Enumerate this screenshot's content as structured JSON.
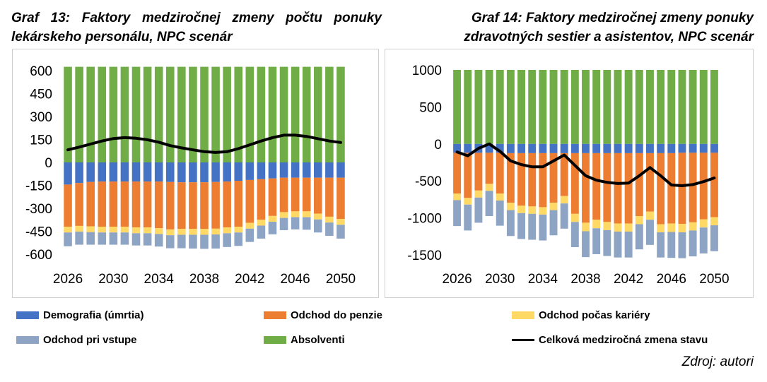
{
  "titles": {
    "left": "Graf 13: Faktory medziročnej zmeny počtu ponuky lekárskeho personálu, NPC scenár",
    "right": "Graf 14: Faktory medziročnej zmeny ponuky zdravotných sestier a asistentov, NPC scenár"
  },
  "legend": {
    "demografia": "Demografia (úmrtia)",
    "penzia": "Odchod do penzie",
    "kariera": "Odchod počas kariéry",
    "vstup": "Odchod pri vstupe",
    "absolventi": "Absolventi",
    "celkova": "Celková medziročná zmena stavu"
  },
  "source": "Zdroj: autori",
  "colors": {
    "demografia": "#4472C4",
    "penzia": "#ED7D31",
    "kariera": "#FFD966",
    "vstup": "#8EA4C4",
    "absolventi": "#70AD47",
    "celkova": "#000000"
  },
  "chart_data": [
    {
      "type": "bar",
      "stacked": true,
      "title": "Graf 13: Faktory medziročnej zmeny počtu ponuky lekárskeho personálu, NPC scenár",
      "x": [
        2026,
        2027,
        2028,
        2029,
        2030,
        2031,
        2032,
        2033,
        2034,
        2035,
        2036,
        2037,
        2038,
        2039,
        2040,
        2041,
        2042,
        2043,
        2044,
        2045,
        2046,
        2047,
        2048,
        2049,
        2050
      ],
      "x_ticks": [
        "2026",
        "2030",
        "2034",
        "2038",
        "2042",
        "2046",
        "2050"
      ],
      "ylim": [
        -600,
        600
      ],
      "y_ticks": [
        "600",
        "450",
        "300",
        "150",
        "0",
        "-150",
        "-300",
        "-450",
        "-600"
      ],
      "grid": false,
      "series": [
        {
          "name": "Absolventi",
          "key": "absolventi",
          "kind": "bar",
          "values": [
            625,
            625,
            625,
            625,
            625,
            625,
            625,
            625,
            625,
            625,
            625,
            625,
            625,
            625,
            625,
            625,
            625,
            625,
            625,
            625,
            625,
            625,
            625,
            625,
            625
          ]
        },
        {
          "name": "Demografia (úmrtia)",
          "key": "demografia",
          "kind": "bar",
          "values": [
            -145,
            -135,
            -128,
            -125,
            -125,
            -125,
            -125,
            -125,
            -125,
            -128,
            -130,
            -130,
            -130,
            -128,
            -125,
            -120,
            -115,
            -110,
            -105,
            -100,
            -100,
            -100,
            -100,
            -100,
            -100
          ]
        },
        {
          "name": "Odchod do penzie",
          "key": "penzia",
          "kind": "bar",
          "values": [
            -275,
            -280,
            -290,
            -295,
            -295,
            -295,
            -300,
            -300,
            -305,
            -310,
            -305,
            -305,
            -305,
            -305,
            -300,
            -300,
            -280,
            -265,
            -245,
            -225,
            -220,
            -220,
            -235,
            -255,
            -270
          ]
        },
        {
          "name": "Odchod počas kariéry",
          "key": "kariera",
          "kind": "bar",
          "values": [
            -38,
            -38,
            -38,
            -38,
            -38,
            -38,
            -38,
            -38,
            -38,
            -38,
            -38,
            -38,
            -38,
            -38,
            -38,
            -38,
            -38,
            -38,
            -38,
            -38,
            -38,
            -38,
            -38,
            -38,
            -38
          ]
        },
        {
          "name": "Odchod pri vstupe",
          "key": "vstup",
          "kind": "bar",
          "values": [
            -90,
            -85,
            -82,
            -80,
            -80,
            -80,
            -80,
            -80,
            -82,
            -85,
            -88,
            -90,
            -92,
            -92,
            -90,
            -88,
            -87,
            -85,
            -82,
            -80,
            -80,
            -82,
            -85,
            -87,
            -90
          ]
        },
        {
          "name": "Celková medziročná zmena stavu",
          "key": "celkova",
          "kind": "line",
          "values": [
            82,
            100,
            120,
            140,
            156,
            162,
            158,
            148,
            132,
            110,
            95,
            82,
            70,
            65,
            70,
            90,
            115,
            140,
            162,
            178,
            178,
            170,
            155,
            140,
            130
          ]
        }
      ]
    },
    {
      "type": "bar",
      "stacked": true,
      "title": "Graf 14: Faktory medziročnej zmeny ponuky zdravotných sestier a asistentov, NPC scenár",
      "x": [
        2026,
        2027,
        2028,
        2029,
        2030,
        2031,
        2032,
        2033,
        2034,
        2035,
        2036,
        2037,
        2038,
        2039,
        2040,
        2041,
        2042,
        2043,
        2044,
        2045,
        2046,
        2047,
        2048,
        2049,
        2050
      ],
      "x_ticks": [
        "2026",
        "2030",
        "2034",
        "2038",
        "2042",
        "2046",
        "2050"
      ],
      "ylim": [
        -1500,
        1000
      ],
      "y_ticks": [
        "1000",
        "500",
        "0",
        "-500",
        "-1000",
        "-1500"
      ],
      "grid": false,
      "series": [
        {
          "name": "Absolventi",
          "key": "absolventi",
          "kind": "bar",
          "values": [
            1000,
            1000,
            1000,
            1000,
            1000,
            1000,
            1000,
            1000,
            1000,
            1000,
            1000,
            1000,
            1000,
            1000,
            1000,
            1000,
            1000,
            1000,
            1000,
            1000,
            1000,
            1000,
            1000,
            1000,
            1000
          ]
        },
        {
          "name": "Demografia (úmrtia)",
          "key": "demografia",
          "kind": "bar",
          "values": [
            -120,
            -120,
            -120,
            -120,
            -120,
            -125,
            -125,
            -125,
            -125,
            -125,
            -125,
            -125,
            -125,
            -125,
            -125,
            -125,
            -125,
            -125,
            -125,
            -125,
            -125,
            -120,
            -120,
            -120,
            -120
          ]
        },
        {
          "name": "Odchod do penzie",
          "key": "penzia",
          "kind": "bar",
          "values": [
            -550,
            -610,
            -510,
            -420,
            -550,
            -670,
            -710,
            -720,
            -730,
            -670,
            -580,
            -820,
            -940,
            -900,
            -930,
            -950,
            -950,
            -850,
            -790,
            -960,
            -950,
            -960,
            -940,
            -900,
            -870
          ]
        },
        {
          "name": "Odchod počas kariéry",
          "key": "kariera",
          "kind": "bar",
          "values": [
            -90,
            -90,
            -95,
            -95,
            -95,
            -100,
            -100,
            -100,
            -100,
            -100,
            -100,
            -110,
            -115,
            -115,
            -110,
            -110,
            -110,
            -110,
            -110,
            -110,
            -115,
            -115,
            -110,
            -110,
            -110
          ]
        },
        {
          "name": "Odchod pri vstupe",
          "key": "vstup",
          "kind": "bar",
          "values": [
            -350,
            -350,
            -340,
            -340,
            -340,
            -350,
            -350,
            -350,
            -350,
            -340,
            -340,
            -340,
            -350,
            -350,
            -350,
            -350,
            -350,
            -340,
            -340,
            -340,
            -350,
            -350,
            -350,
            -350,
            -350
          ]
        },
        {
          "name": "Celková medziročná zmena stavu",
          "key": "celkova",
          "kind": "line",
          "values": [
            -110,
            -160,
            -60,
            0,
            -100,
            -230,
            -280,
            -310,
            -310,
            -230,
            -150,
            -290,
            -430,
            -490,
            -520,
            -535,
            -530,
            -430,
            -320,
            -430,
            -555,
            -565,
            -550,
            -510,
            -460
          ]
        }
      ]
    }
  ]
}
